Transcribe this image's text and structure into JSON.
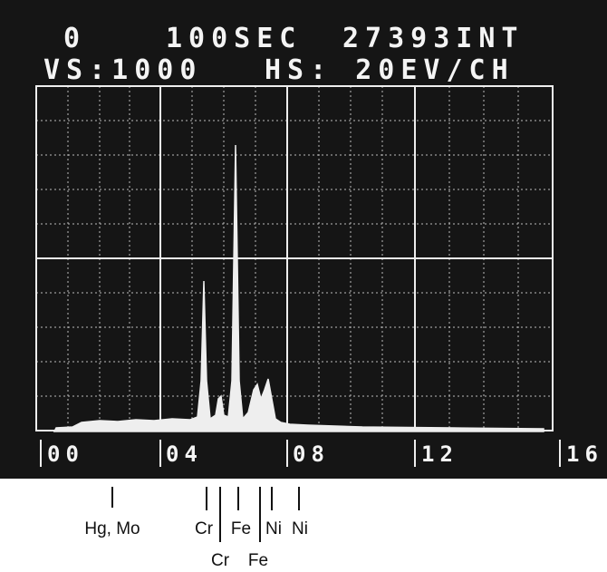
{
  "screen": {
    "header": {
      "counter": "0",
      "time": "100SEC",
      "integral": "27393INT",
      "vertical_scale": "VS:1000",
      "horizontal_scale": "HS: 20EV/CH"
    },
    "axis_labels": [
      "00",
      "04",
      "08",
      "12",
      "16"
    ]
  },
  "peak_labels": {
    "row1": [
      "Hg, Mo",
      "Cr",
      "Fe",
      "Ni",
      "Ni"
    ],
    "row2": [
      "Cr",
      "Fe"
    ]
  }
}
